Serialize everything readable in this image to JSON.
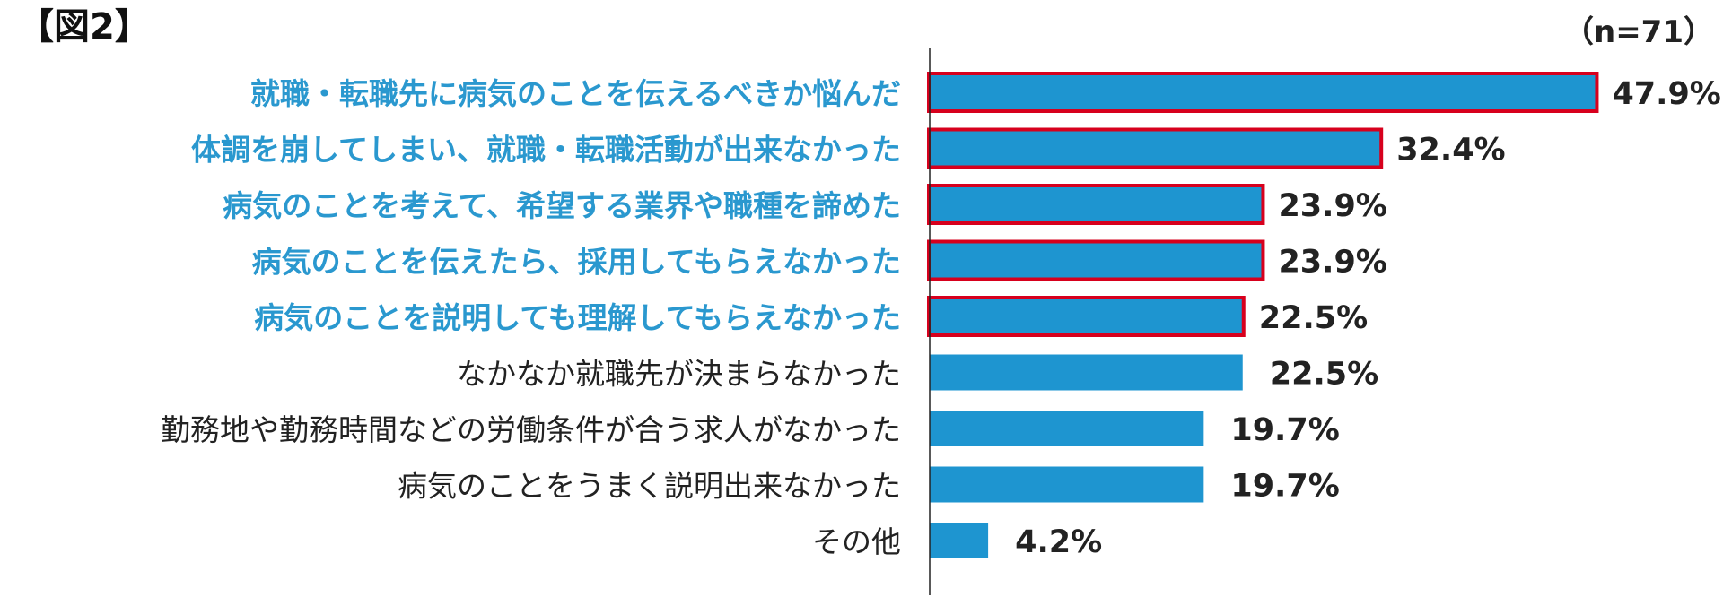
{
  "figure_label": "【図2】",
  "sample_size": "（n=71）",
  "colors": {
    "bar": "#1e95d0",
    "highlight_border": "#d7001d",
    "highlight_text": "#2a98cf",
    "normal_text": "#222222",
    "value_text": "#222222",
    "axis": "#222222"
  },
  "chart_data": {
    "type": "bar",
    "orientation": "horizontal",
    "xlim": [
      0,
      50
    ],
    "grid": false,
    "categories": [
      "就職・転職先に病気のことを伝えるべきか悩んだ",
      "体調を崩してしまい、就職・転職活動が出来なかった",
      "病気のことを考えて、希望する業界や職種を諦めた",
      "病気のことを伝えたら、採用してもらえなかった",
      "病気のことを説明しても理解してもらえなかった",
      "なかなか就職先が決まらなかった",
      "勤務地や勤務時間などの労働条件が合う求人がなかった",
      "病気のことをうまく説明出来なかった",
      "その他"
    ],
    "values": [
      47.9,
      32.4,
      23.9,
      23.9,
      22.5,
      22.5,
      19.7,
      19.7,
      4.2
    ],
    "value_labels": [
      "47.9%",
      "32.4%",
      "23.9%",
      "23.9%",
      "22.5%",
      "22.5%",
      "19.7%",
      "19.7%",
      "4.2%"
    ],
    "highlighted": [
      true,
      true,
      true,
      true,
      true,
      false,
      false,
      false,
      false
    ]
  }
}
